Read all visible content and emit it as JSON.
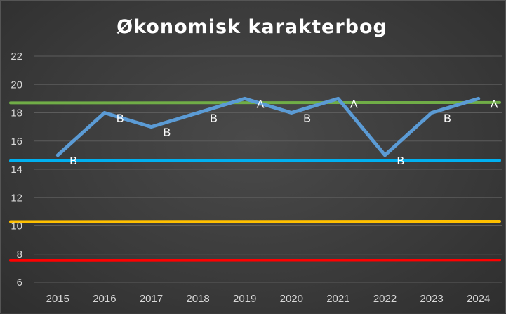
{
  "chart_data": {
    "type": "line",
    "title": "Økonomisk karakterbog",
    "xlabel": "",
    "ylabel": "",
    "categories": [
      "2015",
      "2016",
      "2017",
      "2018",
      "2019",
      "2020",
      "2021",
      "2022",
      "2023",
      "2024"
    ],
    "ylim": [
      6,
      22
    ],
    "yticks": [
      6,
      8,
      10,
      12,
      14,
      16,
      18,
      20,
      22
    ],
    "grid": true,
    "legend": "none",
    "series": [
      {
        "values": [
          15,
          18,
          17,
          18,
          19,
          18,
          19,
          15,
          18,
          19
        ],
        "labels": [
          "B",
          "B",
          "B",
          "B",
          "A",
          "B",
          "A",
          "B",
          "B",
          "A"
        ],
        "color": "#5b9bd5"
      }
    ],
    "reference_lines": [
      {
        "value": 18.7,
        "color": "#70ad47"
      },
      {
        "value": 14.6,
        "color": "#00b0f0"
      },
      {
        "value": 10.3,
        "color": "#ffc000"
      },
      {
        "value": 7.55,
        "color": "#ff0000"
      }
    ]
  }
}
